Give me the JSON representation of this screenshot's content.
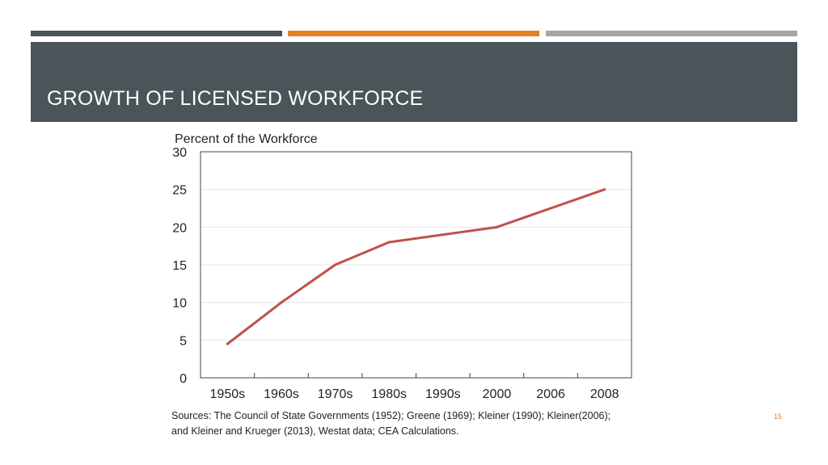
{
  "slide": {
    "title": "GROWTH OF LICENSED WORKFORCE",
    "page_number": "15",
    "accent_colors": [
      "#4a5459",
      "#e67e22",
      "#a6a6a6"
    ],
    "title_band_color": "#4a5459"
  },
  "sources": {
    "line1": "Sources: The Council of State Governments (1952); Greene (1969); Kleiner (1990); Kleiner(2006);",
    "line2": "and Kleiner and Krueger (2013), Westat data; CEA Calculations."
  },
  "chart_data": {
    "type": "line",
    "title": "",
    "ylabel": "Percent of the Workforce",
    "xlabel": "",
    "categories": [
      "1950s",
      "1960s",
      "1970s",
      "1980s",
      "1990s",
      "2000",
      "2006",
      "2008"
    ],
    "series": [
      {
        "points": [
          {
            "x": "1950s",
            "y": 4.5
          },
          {
            "x": "1960s",
            "y": 10
          },
          {
            "x": "1970s",
            "y": 15
          },
          {
            "x": "1980s",
            "y": 18
          },
          {
            "x": "2000",
            "y": 20
          },
          {
            "x": "2008",
            "y": 25
          }
        ],
        "color": "#c0504d"
      }
    ],
    "ylim": [
      0,
      30
    ],
    "yticks": [
      0,
      5,
      10,
      15,
      20,
      25,
      30
    ],
    "grid": true
  }
}
